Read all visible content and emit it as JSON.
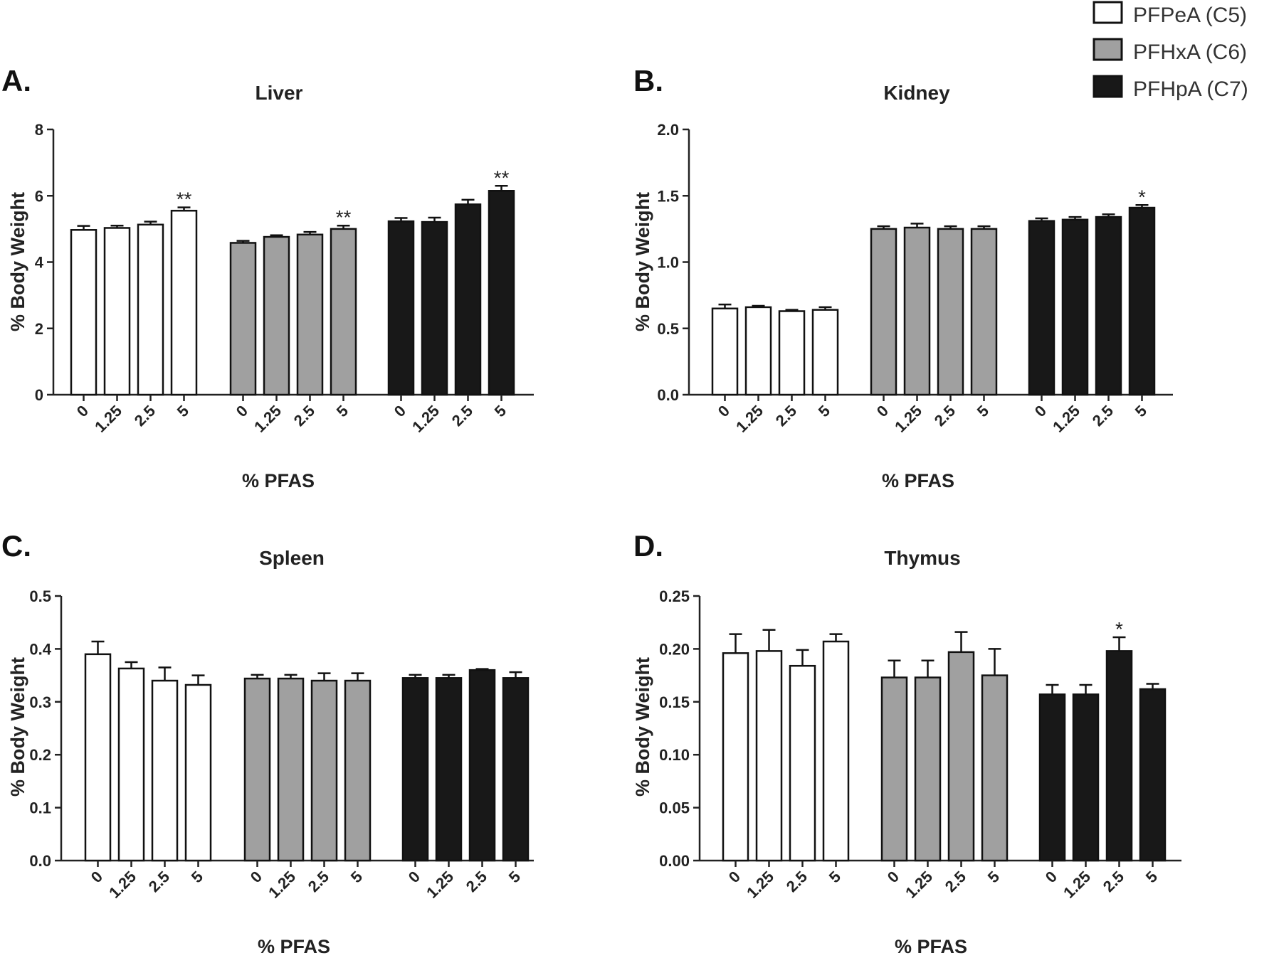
{
  "legend": {
    "items": [
      {
        "label": "PFPeA (C5)",
        "color": "#ffffff"
      },
      {
        "label": "PFHxA (C6)",
        "color": "#a0a0a0"
      },
      {
        "label": "PFHpA (C7)",
        "color": "#181818"
      }
    ]
  },
  "chart_data": [
    {
      "type": "bar",
      "letter": "A.",
      "title": "Liver",
      "xlabel": "% PFAS",
      "ylabel": "% Body Weight",
      "ylim": [
        0,
        8
      ],
      "yticks": [
        "0",
        "2",
        "4",
        "6",
        "8"
      ],
      "categories": [
        "0",
        "1.25",
        "2.5",
        "5"
      ],
      "series": [
        {
          "name": "PFPeA (C5)",
          "values": [
            4.97,
            5.03,
            5.13,
            5.55
          ],
          "errors": [
            0.12,
            0.07,
            0.09,
            0.1
          ],
          "significance": [
            "",
            "",
            "",
            "**"
          ]
        },
        {
          "name": "PFHxA (C6)",
          "values": [
            4.58,
            4.76,
            4.83,
            5.0
          ],
          "errors": [
            0.06,
            0.05,
            0.08,
            0.1
          ],
          "significance": [
            "",
            "",
            "",
            "**"
          ]
        },
        {
          "name": "PFHpA (C7)",
          "values": [
            5.23,
            5.21,
            5.74,
            6.15
          ],
          "errors": [
            0.1,
            0.13,
            0.14,
            0.15
          ],
          "significance": [
            "",
            "",
            "",
            "**"
          ]
        }
      ]
    },
    {
      "type": "bar",
      "letter": "B.",
      "title": "Kidney",
      "xlabel": "% PFAS",
      "ylabel": "% Body Weight",
      "ylim": [
        0,
        2
      ],
      "yticks": [
        "0.0",
        "0.5",
        "1.0",
        "1.5",
        "2.0"
      ],
      "categories": [
        "0",
        "1.25",
        "2.5",
        "5"
      ],
      "series": [
        {
          "name": "PFPeA (C5)",
          "values": [
            0.65,
            0.66,
            0.63,
            0.64
          ],
          "errors": [
            0.03,
            0.01,
            0.01,
            0.02
          ],
          "significance": [
            "",
            "",
            "",
            ""
          ]
        },
        {
          "name": "PFHxA (C6)",
          "values": [
            1.25,
            1.26,
            1.25,
            1.25
          ],
          "errors": [
            0.02,
            0.03,
            0.02,
            0.02
          ],
          "significance": [
            "",
            "",
            "",
            ""
          ]
        },
        {
          "name": "PFHpA (C7)",
          "values": [
            1.31,
            1.32,
            1.34,
            1.41
          ],
          "errors": [
            0.02,
            0.02,
            0.02,
            0.02
          ],
          "significance": [
            "",
            "",
            "",
            "*"
          ]
        }
      ]
    },
    {
      "type": "bar",
      "letter": "C.",
      "title": "Spleen",
      "xlabel": "% PFAS",
      "ylabel": "% Body Weight",
      "ylim": [
        0,
        0.5
      ],
      "yticks": [
        "0.0",
        "0.1",
        "0.2",
        "0.3",
        "0.4",
        "0.5"
      ],
      "categories": [
        "0",
        "1.25",
        "2.5",
        "5"
      ],
      "series": [
        {
          "name": "PFPeA (C5)",
          "values": [
            0.39,
            0.363,
            0.34,
            0.332
          ],
          "errors": [
            0.024,
            0.012,
            0.025,
            0.018
          ],
          "significance": [
            "",
            "",
            "",
            ""
          ]
        },
        {
          "name": "PFHxA (C6)",
          "values": [
            0.344,
            0.344,
            0.34,
            0.34
          ],
          "errors": [
            0.007,
            0.007,
            0.014,
            0.014
          ],
          "significance": [
            "",
            "",
            "",
            ""
          ]
        },
        {
          "name": "PFHpA (C7)",
          "values": [
            0.345,
            0.345,
            0.36,
            0.345
          ],
          "errors": [
            0.006,
            0.006,
            0.002,
            0.011
          ],
          "significance": [
            "",
            "",
            "",
            ""
          ]
        }
      ]
    },
    {
      "type": "bar",
      "letter": "D.",
      "title": "Thymus",
      "xlabel": "% PFAS",
      "ylabel": "% Body Weight",
      "ylim": [
        0,
        0.25
      ],
      "yticks": [
        "0.00",
        "0.05",
        "0.10",
        "0.15",
        "0.20",
        "0.25"
      ],
      "categories": [
        "0",
        "1.25",
        "2.5",
        "5"
      ],
      "series": [
        {
          "name": "PFPeA (C5)",
          "values": [
            0.196,
            0.198,
            0.184,
            0.207
          ],
          "errors": [
            0.018,
            0.02,
            0.015,
            0.007
          ],
          "significance": [
            "",
            "",
            "",
            ""
          ]
        },
        {
          "name": "PFHxA (C6)",
          "values": [
            0.173,
            0.173,
            0.197,
            0.175
          ],
          "errors": [
            0.016,
            0.016,
            0.019,
            0.025
          ],
          "significance": [
            "",
            "",
            "",
            ""
          ]
        },
        {
          "name": "PFHpA (C7)",
          "values": [
            0.157,
            0.157,
            0.198,
            0.162
          ],
          "errors": [
            0.009,
            0.009,
            0.013,
            0.005
          ],
          "significance": [
            "",
            "",
            "*",
            ""
          ]
        }
      ]
    }
  ]
}
